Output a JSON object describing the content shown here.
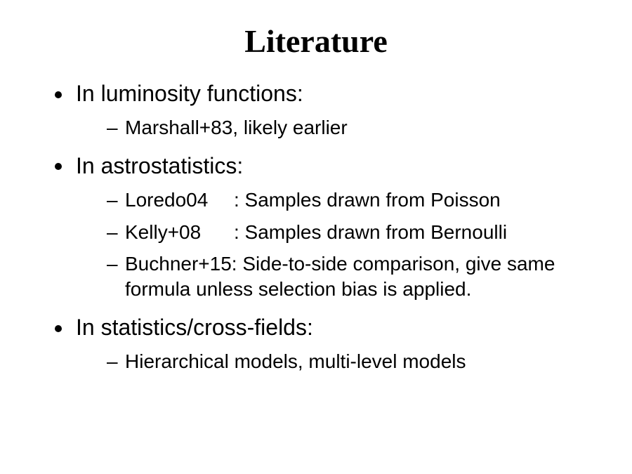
{
  "title": "Literature",
  "sections": [
    {
      "heading": "In luminosity functions:",
      "items": [
        {
          "text": "Marshall+83, likely earlier"
        }
      ]
    },
    {
      "heading": "In astrostatistics:",
      "items": [
        {
          "ref": "Loredo04",
          "rest": ": Samples drawn from Poisson"
        },
        {
          "ref": "Kelly+08",
          "rest": ": Samples drawn from Bernoulli"
        },
        {
          "text": "Buchner+15: Side-to-side comparison, give same formula unless selection bias is applied."
        }
      ]
    },
    {
      "heading": "In statistics/cross-fields:",
      "items": [
        {
          "text": "Hierarchical models, multi-level models"
        }
      ]
    }
  ]
}
